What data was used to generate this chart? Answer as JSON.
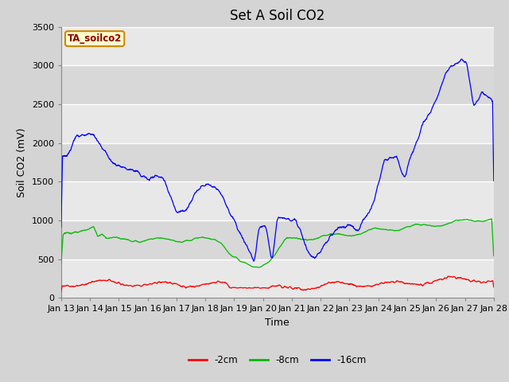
{
  "title": "Set A Soil CO2",
  "ylabel": "Soil CO2 (mV)",
  "xlabel": "Time",
  "xlim_days": [
    13,
    28
  ],
  "ylim": [
    0,
    3500
  ],
  "yticks": [
    0,
    500,
    1000,
    1500,
    2000,
    2500,
    3000,
    3500
  ],
  "xtick_labels": [
    "Jan 13",
    "Jan 14",
    "Jan 15",
    "Jan 16",
    "Jan 17",
    "Jan 18",
    "Jan 19",
    "Jan 20",
    "Jan 21",
    "Jan 22",
    "Jan 23",
    "Jan 24",
    "Jan 25",
    "Jan 26",
    "Jan 27",
    "Jan 28"
  ],
  "legend_label": "TA_soilco2",
  "series_labels": [
    "-2cm",
    "-8cm",
    "-16cm"
  ],
  "series_colors": [
    "#ff0000",
    "#00bb00",
    "#0000ff"
  ],
  "band_colors": [
    "#e8e8e8",
    "#d8d8d8"
  ],
  "background_color": "#d8d8d8",
  "title_fontsize": 12,
  "axis_fontsize": 9,
  "tick_fontsize": 8
}
